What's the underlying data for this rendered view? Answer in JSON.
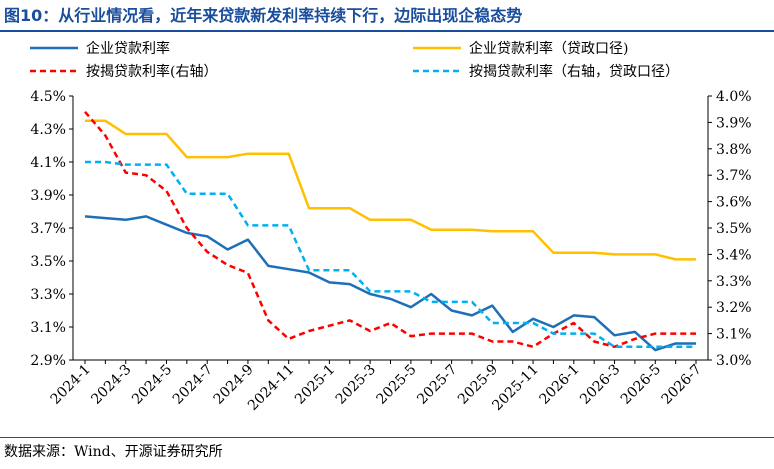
{
  "title": "图10：从行业情况看，近年来贷款新发利率持续下行，边际出现企稳态势",
  "source": "数据来源：Wind、开源证券研究所",
  "colors": {
    "title": "#1a4e9c",
    "corp": "#1f6fb8",
    "corp_policy": "#ffc000",
    "mort": "#ff0000",
    "mort_policy": "#00b0f0"
  },
  "chart_data": {
    "type": "line",
    "x": [
      "2024-1",
      "2024-2",
      "2024-3",
      "2024-4",
      "2024-5",
      "2024-6",
      "2024-7",
      "2024-8",
      "2024-9",
      "2024-10",
      "2024-11",
      "2024-12",
      "2025-1",
      "2025-2",
      "2025-3",
      "2025-4",
      "2025-5",
      "2025-6",
      "2025-7",
      "2025-8",
      "2025-9",
      "2025-10",
      "2025-11",
      "2025-12",
      "2026-1",
      "2026-2",
      "2026-3",
      "2026-4",
      "2026-5",
      "2026-6",
      "2026-7"
    ],
    "x_tick_labels": [
      "2024-1",
      "2024-3",
      "2024-5",
      "2024-7",
      "2024-9",
      "2024-11",
      "2025-1",
      "2025-3",
      "2025-5",
      "2025-7",
      "2025-9",
      "2025-11",
      "2026-1",
      "2026-3",
      "2026-5",
      "2026-7"
    ],
    "y_left": {
      "ticks": [
        "4.5%",
        "4.3%",
        "4.1%",
        "3.9%",
        "3.7%",
        "3.5%",
        "3.3%",
        "3.1%",
        "2.9%"
      ],
      "lim": [
        2.9,
        4.5
      ]
    },
    "y_right": {
      "ticks": [
        "4.0%",
        "3.9%",
        "3.8%",
        "3.7%",
        "3.6%",
        "3.5%",
        "3.4%",
        "3.3%",
        "3.2%",
        "3.1%",
        "3.0%"
      ],
      "lim": [
        3.0,
        4.0
      ]
    },
    "grid": false,
    "legend": "top",
    "series": [
      {
        "name": "企业贷款利率",
        "axis": "left",
        "style": "solid",
        "color": "#1f6fb8",
        "values": [
          3.77,
          3.76,
          3.75,
          3.77,
          3.72,
          3.67,
          3.65,
          3.57,
          3.63,
          3.47,
          3.45,
          3.43,
          3.37,
          3.36,
          3.3,
          3.27,
          3.22,
          3.3,
          3.2,
          3.17,
          3.23,
          3.07,
          3.15,
          3.1,
          3.17,
          3.16,
          3.05,
          3.07,
          2.96,
          3.0,
          3.0
        ]
      },
      {
        "name": "企业贷款利率（贷政口径)",
        "axis": "left",
        "style": "solid",
        "color": "#ffc000",
        "values": [
          4.35,
          4.35,
          4.27,
          4.27,
          4.27,
          4.13,
          4.13,
          4.13,
          4.15,
          4.15,
          4.15,
          3.82,
          3.82,
          3.82,
          3.75,
          3.75,
          3.75,
          3.69,
          3.69,
          3.69,
          3.68,
          3.68,
          3.68,
          3.55,
          3.55,
          3.55,
          3.54,
          3.54,
          3.54,
          3.51,
          3.51
        ]
      },
      {
        "name": "按揭贷款利率(右轴）",
        "axis": "right",
        "style": "dashed",
        "color": "#ff0000",
        "values": [
          3.94,
          3.85,
          3.71,
          3.7,
          3.64,
          3.5,
          3.41,
          3.36,
          3.33,
          3.15,
          3.08,
          3.11,
          3.13,
          3.15,
          3.11,
          3.14,
          3.09,
          3.1,
          3.1,
          3.1,
          3.07,
          3.07,
          3.05,
          3.1,
          3.14,
          3.07,
          3.05,
          3.08,
          3.1,
          3.1,
          3.1
        ]
      },
      {
        "name": "按揭贷款利率（右轴，贷政口径）",
        "axis": "right",
        "style": "dashed",
        "color": "#00b0f0",
        "values": [
          3.75,
          3.75,
          3.74,
          3.74,
          3.74,
          3.63,
          3.63,
          3.63,
          3.51,
          3.51,
          3.51,
          3.34,
          3.34,
          3.34,
          3.26,
          3.26,
          3.26,
          3.22,
          3.22,
          3.22,
          3.14,
          3.14,
          3.14,
          3.1,
          3.1,
          3.1,
          3.05,
          3.05,
          3.05,
          3.05,
          3.05
        ]
      }
    ]
  }
}
